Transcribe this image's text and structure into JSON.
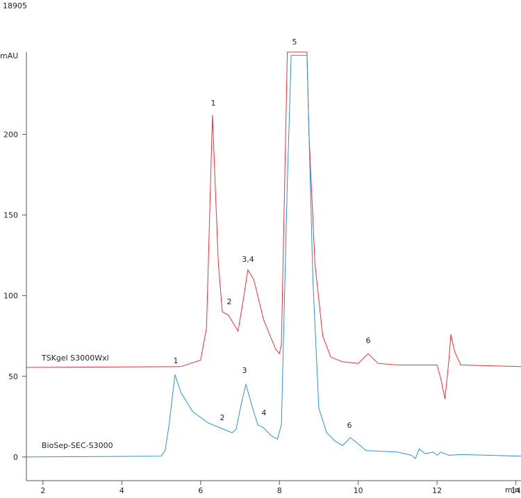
{
  "chart_data": {
    "type": "line",
    "header": "18905",
    "y_label": "mAU",
    "x_label": "min",
    "xlim": [
      1.58,
      14.13
    ],
    "ylim": [
      -14.7,
      251
    ],
    "xticks": [
      2,
      4,
      6,
      8,
      10,
      12,
      14
    ],
    "yticks": [
      0,
      50,
      100,
      150,
      200
    ],
    "series": [
      {
        "name": "TSKgel S3000Wxl",
        "color": "#e8303a",
        "x": [
          1.58,
          5.5,
          6.0,
          6.15,
          6.3,
          6.45,
          6.55,
          6.7,
          6.85,
          6.95,
          7.1,
          7.2,
          7.35,
          7.6,
          7.9,
          8.0,
          8.05,
          8.2,
          8.7,
          8.75,
          8.9,
          9.1,
          9.3,
          9.6,
          10.0,
          10.25,
          10.5,
          11.0,
          12.0,
          12.1,
          12.2,
          12.3,
          12.35,
          12.45,
          12.6,
          14.13
        ],
        "values": [
          55.5,
          56,
          60,
          80,
          212,
          120,
          90,
          88,
          82,
          78,
          100,
          116,
          110,
          85,
          67,
          64,
          70,
          251,
          251,
          200,
          120,
          75,
          62,
          59,
          58,
          64,
          58,
          57,
          57,
          48,
          36,
          60,
          76,
          65,
          57,
          56
        ]
      },
      {
        "name": "BioSep-SEC-S3000",
        "color": "#2f8fd6",
        "x": [
          1.58,
          5.0,
          5.1,
          5.2,
          5.35,
          5.5,
          5.8,
          6.2,
          6.6,
          6.8,
          6.9,
          7.05,
          7.15,
          7.3,
          7.45,
          7.6,
          7.8,
          7.95,
          8.05,
          8.2,
          8.3,
          8.7,
          8.75,
          8.85,
          9.0,
          9.2,
          9.4,
          9.6,
          9.8,
          10.0,
          10.2,
          11.0,
          11.35,
          11.45,
          11.55,
          11.7,
          11.9,
          12.0,
          12.1,
          12.3,
          12.6,
          14.13
        ],
        "values": [
          0,
          0.5,
          4,
          20,
          51,
          40,
          28,
          21,
          17,
          15,
          17,
          35,
          45,
          32,
          20,
          18,
          13,
          11,
          20,
          170,
          249,
          249,
          200,
          110,
          30,
          15,
          10,
          7,
          12,
          8,
          4,
          3,
          1,
          -1,
          5,
          2,
          3,
          1,
          3,
          1,
          1.5,
          0.5
        ]
      }
    ],
    "annotations": [
      "1",
      "2",
      "3,4",
      "5",
      "6",
      "1",
      "2",
      "3",
      "4",
      "6"
    ]
  }
}
